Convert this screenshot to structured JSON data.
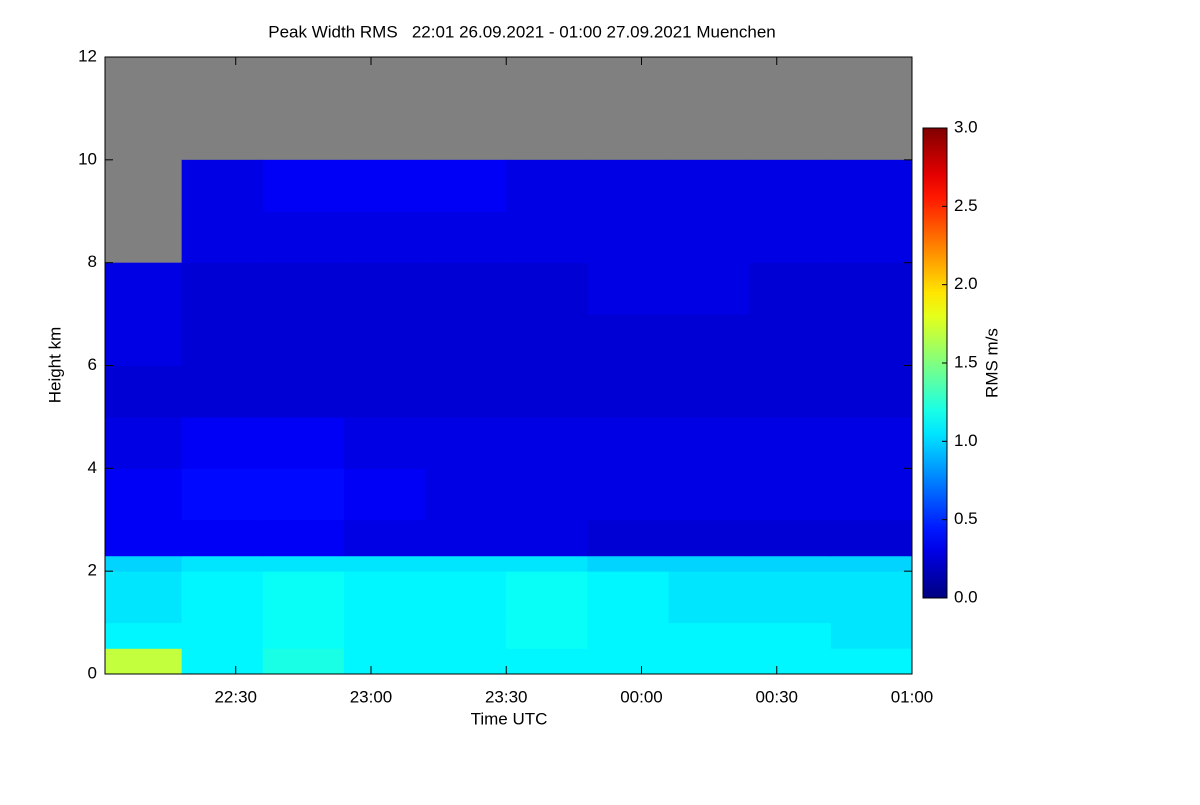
{
  "chart_data": {
    "type": "heatmap",
    "title": "Peak Width RMS   22:01 26.09.2021 - 01:00 27.09.2021 Muenchen",
    "xlabel": "Time UTC",
    "ylabel": "Height km",
    "colorbar_label": "RMS m/s",
    "xbins": [
      22.0167,
      22.3,
      22.6,
      22.9,
      23.2,
      23.5,
      23.8,
      24.1,
      24.4,
      24.7,
      25.0
    ],
    "ybins": [
      0,
      0.5,
      1,
      2,
      2.3,
      3,
      4,
      5,
      6,
      7,
      8,
      9,
      10,
      12
    ],
    "z": [
      [
        1.7,
        1.1,
        1.2,
        1.1,
        1.1,
        1.1,
        1.1,
        1.1,
        1.1,
        1.1
      ],
      [
        1.1,
        1.1,
        1.15,
        1.1,
        1.1,
        1.15,
        1.1,
        1.1,
        1.1,
        1.05
      ],
      [
        1.05,
        1.1,
        1.15,
        1.1,
        1.1,
        1.15,
        1.1,
        1.05,
        1.05,
        1.05
      ],
      [
        1.0,
        1.05,
        1.05,
        1.05,
        1.05,
        1.05,
        1.0,
        1.0,
        1.0,
        1.0
      ],
      [
        0.35,
        0.35,
        0.35,
        0.3,
        0.3,
        0.3,
        0.25,
        0.25,
        0.25,
        0.25
      ],
      [
        0.35,
        0.4,
        0.4,
        0.35,
        0.3,
        0.3,
        0.3,
        0.3,
        0.3,
        0.3
      ],
      [
        0.3,
        0.35,
        0.35,
        0.3,
        0.3,
        0.3,
        0.3,
        0.3,
        0.3,
        0.3
      ],
      [
        0.25,
        0.25,
        0.25,
        0.25,
        0.25,
        0.25,
        0.25,
        0.25,
        0.25,
        0.25
      ],
      [
        0.3,
        0.25,
        0.25,
        0.25,
        0.25,
        0.25,
        0.25,
        0.25,
        0.25,
        0.25
      ],
      [
        0.3,
        0.25,
        0.25,
        0.25,
        0.25,
        0.25,
        0.3,
        0.3,
        0.25,
        0.25
      ],
      [
        null,
        0.3,
        0.3,
        0.3,
        0.3,
        0.3,
        0.3,
        0.3,
        0.3,
        0.3
      ],
      [
        null,
        0.3,
        0.35,
        0.35,
        0.35,
        0.3,
        0.3,
        0.3,
        0.3,
        0.3
      ],
      [
        null,
        null,
        null,
        null,
        null,
        null,
        null,
        null,
        null,
        null
      ]
    ],
    "xlim": [
      22.0167,
      25.0
    ],
    "ylim": [
      0,
      12
    ],
    "zlim": [
      0,
      3.0
    ],
    "xticks": [
      {
        "value": 22.5,
        "label": "22:30"
      },
      {
        "value": 23.0,
        "label": "23:00"
      },
      {
        "value": 23.5,
        "label": "23:30"
      },
      {
        "value": 24.0,
        "label": "00:00"
      },
      {
        "value": 24.5,
        "label": "00:30"
      },
      {
        "value": 25.0,
        "label": "01:00"
      }
    ],
    "yticks": [
      0,
      2,
      4,
      6,
      8,
      10,
      12
    ],
    "zticks": [
      {
        "value": 0,
        "label": "0.0"
      },
      {
        "value": 0.5,
        "label": "0.5"
      },
      {
        "value": 1.0,
        "label": "1.0"
      },
      {
        "value": 1.5,
        "label": "1.5"
      },
      {
        "value": 2.0,
        "label": "2.0"
      },
      {
        "value": 2.5,
        "label": "2.5"
      },
      {
        "value": 3.0,
        "label": "3.0"
      }
    ],
    "colormap": "jet",
    "missing_color": "#808080"
  }
}
